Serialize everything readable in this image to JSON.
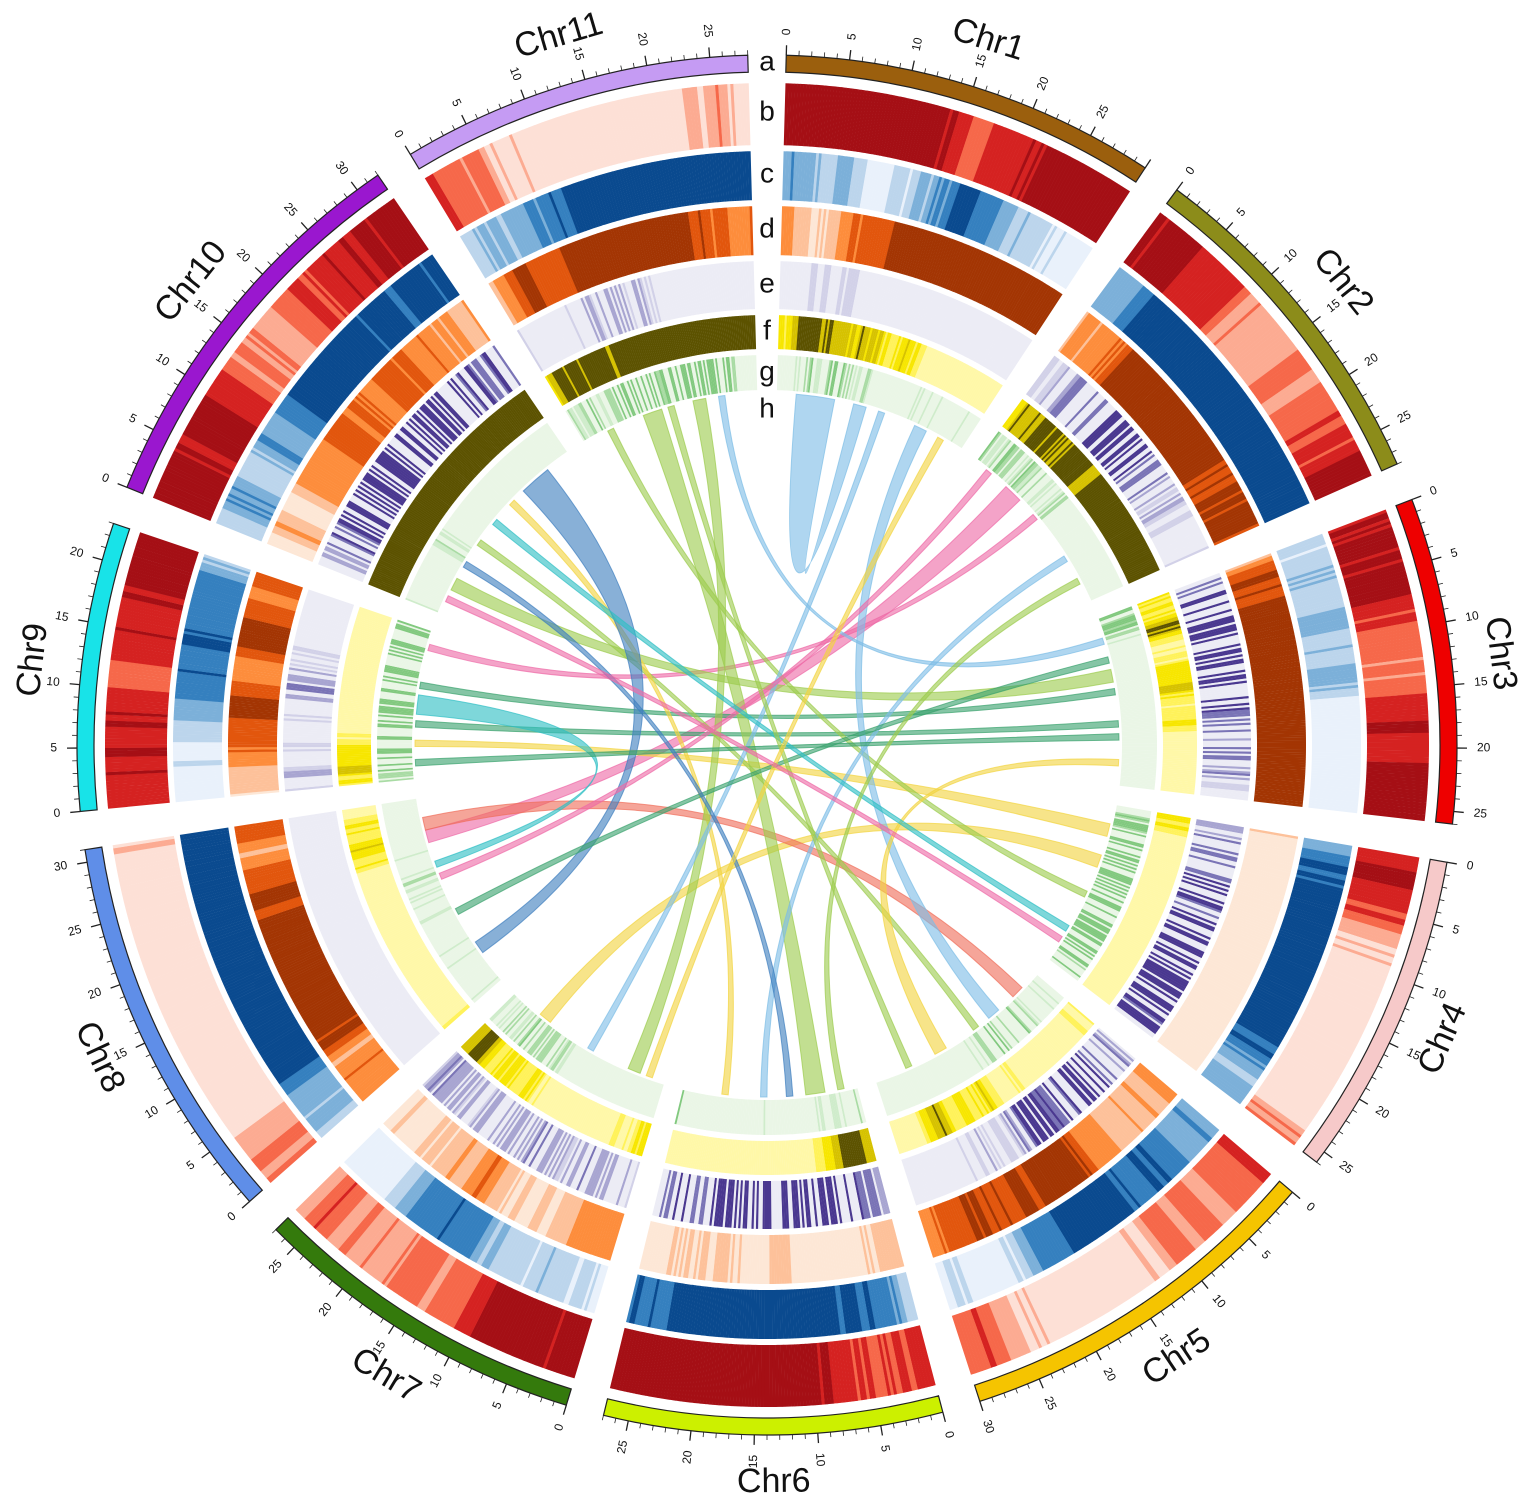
{
  "chart_data": {
    "type": "circos",
    "chromosomes": [
      {
        "name": "Chr1",
        "length": 30,
        "color": "#9b5f0d",
        "ticks": [
          "0",
          "5",
          "10",
          "15",
          "20",
          "25"
        ]
      },
      {
        "name": "Chr2",
        "length": 28,
        "color": "#8c8c1a",
        "ticks": [
          "0",
          "5",
          "10",
          "15",
          "20",
          "25"
        ]
      },
      {
        "name": "Chr3",
        "length": 26,
        "color": "#ee0000",
        "ticks": [
          "0",
          "5",
          "10",
          "15",
          "20",
          "25"
        ]
      },
      {
        "name": "Chr4",
        "length": 26,
        "color": "#f6c9c9",
        "ticks": [
          "0",
          "5",
          "10",
          "15",
          "20",
          "25"
        ]
      },
      {
        "name": "Chr5",
        "length": 30,
        "color": "#f5c400",
        "ticks": [
          "0",
          "5",
          "10",
          "15",
          "20",
          "25",
          "30"
        ]
      },
      {
        "name": "Chr6",
        "length": 27,
        "color": "#ccf000",
        "ticks": [
          "0",
          "5",
          "10",
          "15",
          "20",
          "25"
        ]
      },
      {
        "name": "Chr7",
        "length": 27,
        "color": "#347a0c",
        "ticks": [
          "0",
          "5",
          "10",
          "15",
          "20",
          "25"
        ]
      },
      {
        "name": "Chr8",
        "length": 31,
        "color": "#5f8ee8",
        "ticks": [
          "0",
          "5",
          "10",
          "15",
          "20",
          "25",
          "30"
        ]
      },
      {
        "name": "Chr9",
        "length": 23,
        "color": "#18e3e8",
        "ticks": [
          "0",
          "5",
          "10",
          "15",
          "20"
        ]
      },
      {
        "name": "Chr10",
        "length": 32,
        "color": "#9a17cf",
        "ticks": [
          "0",
          "5",
          "10",
          "15",
          "20",
          "25",
          "30"
        ]
      },
      {
        "name": "Chr11",
        "length": 28,
        "color": "#c59bf3",
        "ticks": [
          "0",
          "5",
          "10",
          "15",
          "20",
          "25"
        ]
      }
    ],
    "tracks": [
      "a",
      "b",
      "c",
      "d",
      "e",
      "f",
      "g",
      "h"
    ],
    "track_palettes": {
      "b": [
        "#fde0d6",
        "#fcab92",
        "#f6684a",
        "#d52221",
        "#a50f15"
      ],
      "c": [
        "#e9f1fb",
        "#bcd5ec",
        "#7cb0d9",
        "#3580bf",
        "#0a4a8f"
      ],
      "d": [
        "#fde7d6",
        "#fdc19a",
        "#fd8d3c",
        "#e2560d",
        "#a33503"
      ],
      "e": [
        "#ececf5",
        "#d2d1e8",
        "#a8a5d1",
        "#7a74b6",
        "#4a3890"
      ],
      "f": [
        "#fff8a8",
        "#fff25a",
        "#f7e600",
        "#d6c200",
        "#5c5200"
      ],
      "g": [
        "#eaf6e6",
        "#cfeccb",
        "#a9dba4",
        "#82c97f"
      ]
    },
    "links": [
      {
        "from": [
          "Chr1",
          3,
          9
        ],
        "to": [
          "Chr1",
          12,
          14
        ],
        "color": "#7ebde6"
      },
      {
        "from": [
          "Chr2",
          6,
          9
        ],
        "to": [
          "Chr8",
          24,
          26
        ],
        "color": "#ee6aa7"
      },
      {
        "from": [
          "Chr2",
          12,
          13
        ],
        "to": [
          "Chr9",
          20,
          21
        ],
        "color": "#ee6aa7"
      },
      {
        "from": [
          "Chr3",
          8,
          10
        ],
        "to": [
          "Chr10",
          4,
          6
        ],
        "color": "#9ccc4e"
      },
      {
        "from": [
          "Chr3",
          11,
          12
        ],
        "to": [
          "Chr9",
          14,
          15
        ],
        "color": "#3aa26d"
      },
      {
        "from": [
          "Chr3",
          16,
          17
        ],
        "to": [
          "Chr9",
          8,
          9
        ],
        "color": "#3aa26d"
      },
      {
        "from": [
          "Chr3",
          3,
          4
        ],
        "to": [
          "Chr11",
          22,
          23
        ],
        "color": "#7ebde6"
      },
      {
        "from": [
          "Chr4",
          3,
          5
        ],
        "to": [
          "Chr9",
          5,
          6
        ],
        "color": "#f2d440"
      },
      {
        "from": [
          "Chr4",
          8,
          10
        ],
        "to": [
          "Chr7",
          20,
          22
        ],
        "color": "#f2d440"
      },
      {
        "from": [
          "Chr4",
          14,
          15
        ],
        "to": [
          "Chr11",
          4,
          5
        ],
        "color": "#9ccc4e"
      },
      {
        "from": [
          "Chr5",
          3,
          5
        ],
        "to": [
          "Chr8",
          26,
          28
        ],
        "color": "#ef6e5a"
      },
      {
        "from": [
          "Chr5",
          8,
          10
        ],
        "to": [
          "Chr1",
          22,
          24
        ],
        "color": "#7ebde6"
      },
      {
        "from": [
          "Chr5",
          12,
          13
        ],
        "to": [
          "Chr10",
          12,
          13
        ],
        "color": "#9ccc4e"
      },
      {
        "from": [
          "Chr5",
          18,
          20
        ],
        "to": [
          "Chr3",
          22,
          23
        ],
        "color": "#f2d440"
      },
      {
        "from": [
          "Chr6",
          5,
          8
        ],
        "to": [
          "Chr11",
          10,
          13
        ],
        "color": "#9ccc4e"
      },
      {
        "from": [
          "Chr6",
          14,
          15
        ],
        "to": [
          "Chr2",
          20,
          21
        ],
        "color": "#7ebde6"
      },
      {
        "from": [
          "Chr6",
          20,
          21
        ],
        "to": [
          "Chr10",
          20,
          21
        ],
        "color": "#f2d440"
      },
      {
        "from": [
          "Chr7",
          4,
          6
        ],
        "to": [
          "Chr11",
          18,
          20
        ],
        "color": "#9ccc4e"
      },
      {
        "from": [
          "Chr7",
          12,
          13
        ],
        "to": [
          "Chr1",
          16,
          17
        ],
        "color": "#7ebde6"
      },
      {
        "from": [
          "Chr8",
          5,
          7
        ],
        "to": [
          "Chr10",
          23,
          28
        ],
        "color": "#3f7fbf"
      },
      {
        "from": [
          "Chr8",
          12,
          13
        ],
        "to": [
          "Chr3",
          6,
          7
        ],
        "color": "#3aa26d"
      },
      {
        "from": [
          "Chr8",
          18,
          19
        ],
        "to": [
          "Chr2",
          2,
          3
        ],
        "color": "#ee6aa7"
      },
      {
        "from": [
          "Chr9",
          10,
          13
        ],
        "to": [
          "Chr8",
          20,
          21
        ],
        "color": "#2fbfc4"
      },
      {
        "from": [
          "Chr9",
          2,
          3
        ],
        "to": [
          "Chr3",
          18,
          19
        ],
        "color": "#3aa26d"
      },
      {
        "from": [
          "Chr10",
          8,
          9
        ],
        "to": [
          "Chr6",
          10,
          11
        ],
        "color": "#3f7fbf"
      },
      {
        "from": [
          "Chr10",
          16,
          17
        ],
        "to": [
          "Chr4",
          20,
          21
        ],
        "color": "#2fbfc4"
      },
      {
        "from": [
          "Chr11",
          14,
          15
        ],
        "to": [
          "Chr5",
          24,
          25
        ],
        "color": "#9ccc4e"
      },
      {
        "from": [
          "Chr1",
          26,
          27
        ],
        "to": [
          "Chr7",
          2,
          3
        ],
        "color": "#f2d440"
      },
      {
        "from": [
          "Chr2",
          24,
          25
        ],
        "to": [
          "Chr6",
          2,
          3
        ],
        "color": "#9ccc4e"
      },
      {
        "from": [
          "Chr4",
          22,
          23
        ],
        "to": [
          "Chr10",
          2,
          3
        ],
        "color": "#ee6aa7"
      }
    ]
  }
}
